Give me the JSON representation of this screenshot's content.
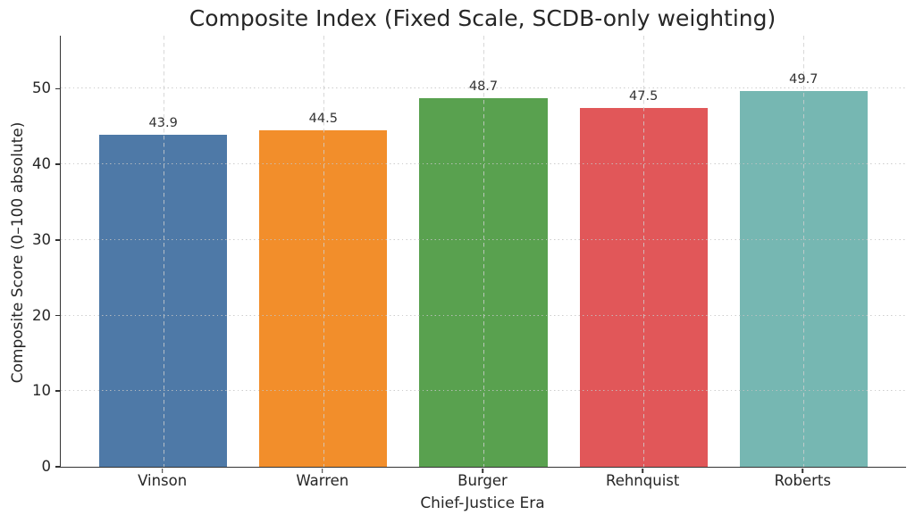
{
  "chart_data": {
    "type": "bar",
    "title": "Composite Index (Fixed Scale, SCDB-only weighting)",
    "xlabel": "Chief-Justice Era",
    "ylabel": "Composite Score (0–100 absolute)",
    "categories": [
      "Vinson",
      "Warren",
      "Burger",
      "Rehnquist",
      "Roberts"
    ],
    "values": [
      43.9,
      44.5,
      48.7,
      47.5,
      49.7
    ],
    "bar_value_labels": [
      "43.9",
      "44.5",
      "48.7",
      "47.5",
      "49.7"
    ],
    "bar_colors": [
      "#4E79A7",
      "#F28E2B",
      "#59A14F",
      "#E15759",
      "#76B7B2"
    ],
    "yticks": [
      0,
      10,
      20,
      30,
      40,
      50
    ],
    "ytick_labels": [
      "0",
      "10",
      "20",
      "30",
      "40",
      "50"
    ],
    "ylim": [
      0,
      57
    ],
    "bar_width_data_units": 0.8,
    "grid": "horizontal dotted + vertical dashed, drawn above bars",
    "legend_position": "none",
    "colors": {
      "spine": "#333333",
      "gridline": "#c8c8c8",
      "title_text": "#262626",
      "tick_text": "#262626",
      "value_label_text": "#333333",
      "background": "#ffffff"
    }
  }
}
